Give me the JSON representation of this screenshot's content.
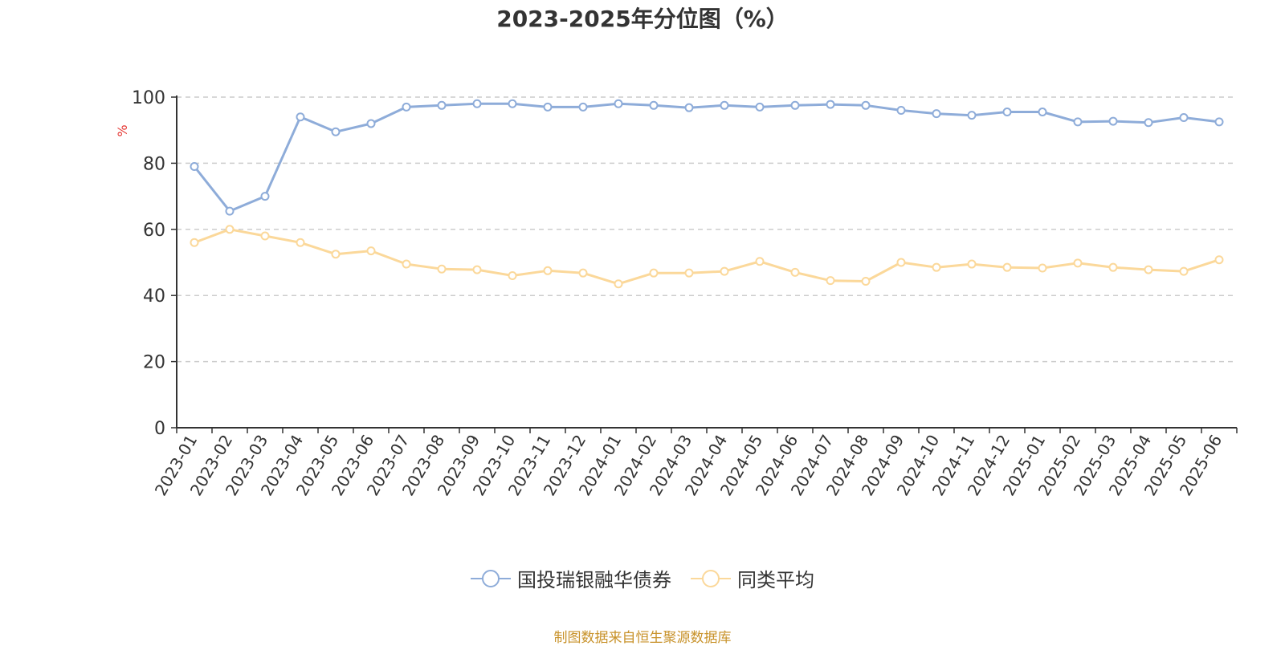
{
  "chart_data": {
    "type": "line",
    "title": "2023-2025年分位图（%）",
    "ylabel": "%",
    "ylim": [
      0,
      100
    ],
    "yticks": [
      0,
      20,
      40,
      60,
      80,
      100
    ],
    "grid": true,
    "legend_position": "bottom",
    "categories": [
      "2023-01",
      "2023-02",
      "2023-03",
      "2023-04",
      "2023-05",
      "2023-06",
      "2023-07",
      "2023-08",
      "2023-09",
      "2023-10",
      "2023-11",
      "2023-12",
      "2024-01",
      "2024-02",
      "2024-03",
      "2024-04",
      "2024-05",
      "2024-06",
      "2024-07",
      "2024-08",
      "2024-09",
      "2024-10",
      "2024-11",
      "2024-12",
      "2025-01",
      "2025-02",
      "2025-03",
      "2025-04",
      "2025-05",
      "2025-06"
    ],
    "series": [
      {
        "name": "国投瑞银融华债券",
        "color": "#8eacd9",
        "values": [
          79,
          65.5,
          70,
          94,
          89.5,
          92,
          97,
          97.5,
          98,
          98,
          97,
          97,
          98,
          97.5,
          96.8,
          97.5,
          97,
          97.5,
          97.8,
          97.5,
          96,
          95,
          94.5,
          95.5,
          95.5,
          92.5,
          92.7,
          92.3,
          93.8,
          92.5
        ]
      },
      {
        "name": "同类平均",
        "color": "#fbd89a",
        "values": [
          56,
          60,
          58,
          56,
          52.5,
          53.5,
          49.5,
          48,
          47.8,
          46,
          47.5,
          46.8,
          43.5,
          46.8,
          46.8,
          47.3,
          50.3,
          47,
          44.5,
          44.3,
          50,
          48.5,
          49.5,
          48.5,
          48.3,
          49.8,
          48.5,
          47.8,
          47.3,
          50.8
        ]
      }
    ]
  },
  "footer": "制图数据来自恒生聚源数据库"
}
